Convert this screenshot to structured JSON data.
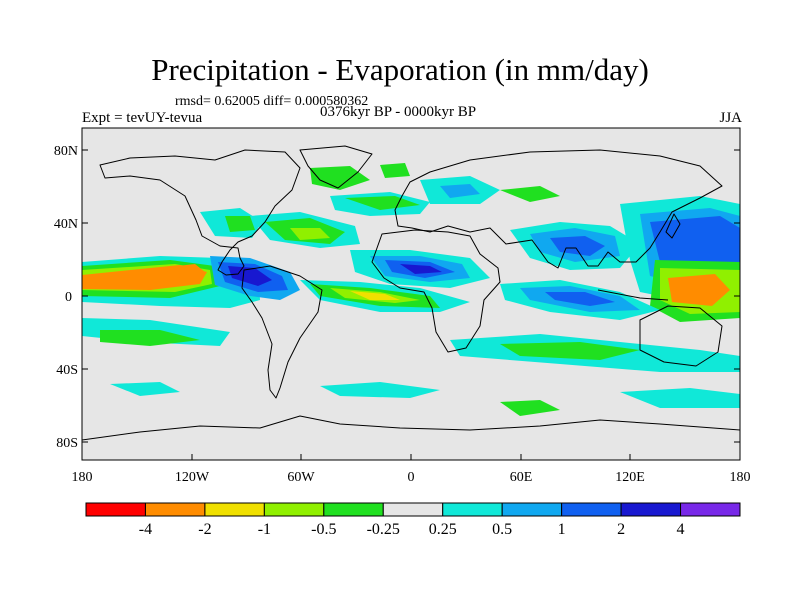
{
  "title": "Precipitation - Evaporation (in mm/day)",
  "stats": "rmsd= 0.62005 diff= 0.000580362",
  "experiment": "Expt = tevUY-tevua",
  "period": "0376kyr BP - 0000kyr BP",
  "season": "JJA",
  "lat_ticks": [
    "80N",
    "40N",
    "0",
    "40S",
    "80S"
  ],
  "lon_ticks": [
    "180",
    "120W",
    "60W",
    "0",
    "60E",
    "120E",
    "180"
  ],
  "colorbar": {
    "colors": [
      "#ff0000",
      "#ff8c00",
      "#f0e000",
      "#90f000",
      "#20e020",
      "#e6e6e6",
      "#10e8d8",
      "#10a8f0",
      "#1060f0",
      "#1818d0",
      "#7828e8"
    ],
    "labels": [
      "-4",
      "-2",
      "-1",
      "-0.5",
      "-0.25",
      "0.25",
      "0.5",
      "1",
      "2",
      "4"
    ]
  },
  "colors": {
    "ocean_background": "#e6e6e6",
    "coastline": "#000000"
  }
}
